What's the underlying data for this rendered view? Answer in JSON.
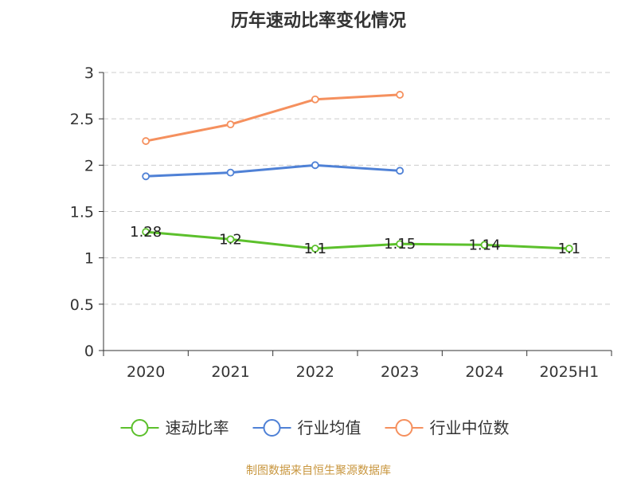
{
  "chart_data": {
    "type": "line",
    "title": "历年速动比率变化情况",
    "categories": [
      "2020",
      "2021",
      "2022",
      "2023",
      "2024",
      "2025H1"
    ],
    "ylim": [
      0,
      3
    ],
    "yticks": [
      "0",
      "0.5",
      "1",
      "1.5",
      "2",
      "2.5",
      "3"
    ],
    "grid": true,
    "legend_position": "bottom",
    "series": [
      {
        "name": "速动比率",
        "color": "#5cc02c",
        "values": [
          1.28,
          1.2,
          1.1,
          1.15,
          1.14,
          1.1
        ],
        "labels": [
          "1.28",
          "1.2",
          "1.1",
          "1.15",
          "1.14",
          "1.1"
        ]
      },
      {
        "name": "行业均值",
        "color": "#4f81d6",
        "values": [
          1.88,
          1.92,
          2.0,
          1.94,
          null,
          null
        ]
      },
      {
        "name": "行业中位数",
        "color": "#f5905e",
        "values": [
          2.26,
          2.44,
          2.71,
          2.76,
          null,
          null
        ]
      }
    ]
  },
  "source": "制图数据来自恒生聚源数据库"
}
